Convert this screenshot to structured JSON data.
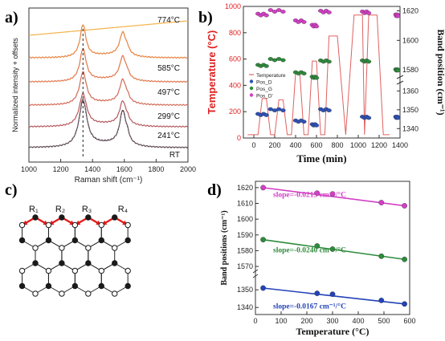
{
  "panels": {
    "a": {
      "letter": "a)"
    },
    "b": {
      "letter": "b)"
    },
    "c": {
      "letter": "c)"
    },
    "d": {
      "letter": "d)"
    }
  },
  "chart_data": [
    {
      "id": "a",
      "type": "line",
      "xlabel": "Raman shift (cm⁻¹)",
      "ylabel": "Normalized intensity + offsets",
      "xlim": [
        1000,
        2000
      ],
      "x_ticks": [
        1000,
        1200,
        1400,
        1600,
        1800,
        2000
      ],
      "peak_marker_x": 1340,
      "series": [
        {
          "name": "774°C",
          "color": "#f3b24c",
          "flat": true
        },
        {
          "name": "585°C",
          "color": "#e8823f"
        },
        {
          "name": "497°C",
          "color": "#e2764a"
        },
        {
          "name": "299°C",
          "color": "#d26a56"
        },
        {
          "name": "241°C",
          "color": "#b5585c"
        },
        {
          "name": "RT",
          "color": "#6e5160"
        }
      ]
    },
    {
      "id": "b",
      "type": "line",
      "xlabel": "Time (min)",
      "ylabel_left": "Temperature (°C)",
      "ylabel_right": "Band position (cm⁻¹)",
      "xlim": [
        -100,
        1400
      ],
      "x_ticks": [
        0,
        200,
        400,
        600,
        800,
        1000,
        1200,
        1400
      ],
      "ylim_left": [
        0,
        1000
      ],
      "y_ticks_left": [
        0,
        200,
        400,
        600,
        800,
        1000
      ],
      "y_ticks_right_upper": [
        1580,
        1600,
        1620
      ],
      "y_ticks_right_lower": [
        1340,
        1350,
        1360
      ],
      "legend": [
        "Temperature",
        "Pos_D",
        "Pos_G",
        "Pos_D'"
      ],
      "colors": {
        "Temperature": "#e06060",
        "Pos_D": "#2f52b8",
        "Pos_G": "#2e8b3c",
        "Pos_D'": "#d43fc7"
      },
      "temperature": {
        "time": [
          -60,
          40,
          80,
          120,
          160,
          200,
          240,
          280,
          320,
          360,
          400,
          440,
          480,
          520,
          560,
          600,
          640,
          680,
          720,
          800,
          880,
          960,
          1040,
          1060,
          1100,
          1180,
          1240,
          1300
        ],
        "temp": [
          25,
          25,
          300,
          300,
          25,
          25,
          290,
          290,
          25,
          25,
          495,
          495,
          25,
          25,
          585,
          585,
          25,
          25,
          775,
          775,
          25,
          935,
          935,
          25,
          935,
          935,
          25,
          25
        ]
      },
      "groups": [
        {
          "t0": 40,
          "t1": 120,
          "d": 1347.5,
          "g": 1583.0,
          "dp": 1617.5
        },
        {
          "t0": 160,
          "t1": 280,
          "d": 1350.0,
          "g": 1587.0,
          "dp": 1620.0
        },
        {
          "t0": 400,
          "t1": 480,
          "d": 1344.0,
          "g": 1578.0,
          "dp": 1613.0
        },
        {
          "t0": 560,
          "t1": 600,
          "d": 1342.0,
          "g": 1575.0,
          "dp": 1610.0
        },
        {
          "t0": 640,
          "t1": 720,
          "d": 1350.0,
          "g": 1586.0,
          "dp": 1619.5
        },
        {
          "t0": 1040,
          "t1": 1100,
          "d": 1346.0,
          "g": 1586.0,
          "dp": 1619.0
        },
        {
          "t0": 1360,
          "t1": 1380,
          "d": 1346.0,
          "g": 1580.0,
          "dp": 1617.0
        }
      ]
    },
    {
      "id": "c",
      "type": "diagram",
      "labels": [
        "R₁",
        "R₂",
        "R₃",
        "R₄"
      ]
    },
    {
      "id": "d",
      "type": "scatter",
      "xlabel": "Temperature (°C)",
      "ylabel": "Band positions (cm⁻¹)",
      "xlim": [
        0,
        600
      ],
      "x_ticks": [
        0,
        100,
        200,
        300,
        400,
        500,
        600
      ],
      "y_ticks": [
        1340,
        1350,
        1570,
        1580,
        1590,
        1600,
        1610,
        1620
      ],
      "x": [
        30,
        240,
        300,
        490,
        580
      ],
      "series": [
        {
          "values": [
            1620.0,
            1616.5,
            1616.0,
            1610.5,
            1608.5
          ],
          "annotation": "slope=-0.0213 cm⁻¹/°C",
          "color": "#d23fc5"
        },
        {
          "values": [
            1587.0,
            1583.0,
            1581.0,
            1576.5,
            1574.5
          ],
          "annotation": "slope=-0.0240 cm⁻¹/°C",
          "color": "#2e8b3c"
        },
        {
          "values": [
            1351.0,
            1348.0,
            1347.5,
            1344.0,
            1342.0
          ],
          "annotation": "slope=-0.0167 cm⁻¹/°C",
          "color": "#2342b8"
        }
      ]
    }
  ]
}
